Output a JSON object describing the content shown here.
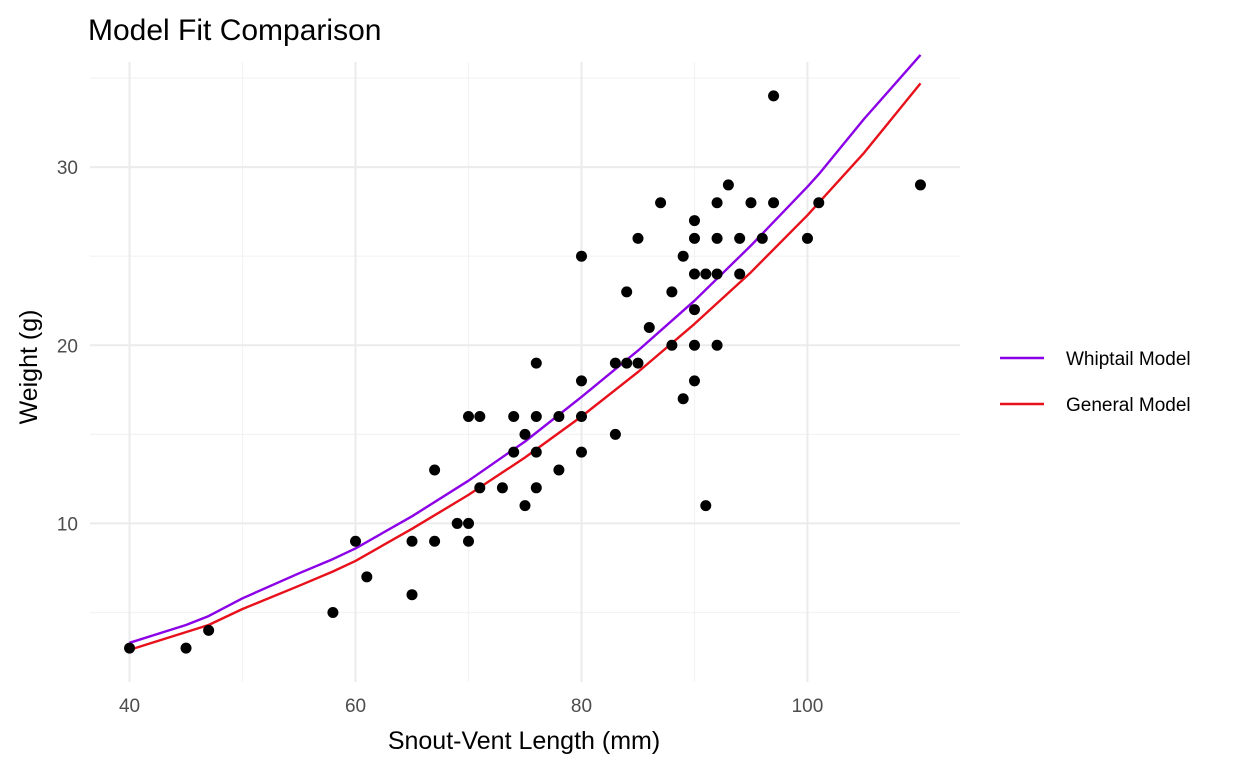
{
  "chart_data": {
    "type": "scatter",
    "title": "Model Fit Comparison",
    "xlabel": "Snout-Vent Length (mm)",
    "ylabel": "Weight (g)",
    "xlim": [
      36.5,
      113.5
    ],
    "ylim": [
      1.1,
      35.9
    ],
    "x_ticks": [
      40,
      60,
      80,
      100
    ],
    "y_ticks": [
      10,
      20,
      30
    ],
    "x_minor_ticks": [
      50,
      70,
      90
    ],
    "y_minor_ticks": [
      5,
      15,
      25,
      35
    ],
    "grid": true,
    "legend_position": "right",
    "points": {
      "color": "#000000",
      "x": [
        40,
        45,
        47,
        58,
        60,
        61,
        65,
        65,
        67,
        67,
        69,
        70,
        70,
        70,
        71,
        71,
        73,
        74,
        74,
        75,
        75,
        76,
        76,
        76,
        76,
        78,
        78,
        80,
        80,
        80,
        80,
        83,
        83,
        84,
        84,
        85,
        85,
        86,
        87,
        88,
        88,
        89,
        89,
        90,
        90,
        90,
        90,
        90,
        90,
        91,
        91,
        92,
        92,
        92,
        92,
        93,
        94,
        94,
        95,
        96,
        97,
        97,
        100,
        101,
        110
      ],
      "y": [
        3,
        3,
        4,
        5,
        9,
        7,
        9,
        6,
        13,
        9,
        10,
        16,
        10,
        9,
        16,
        12,
        12,
        16,
        14,
        15,
        11,
        19,
        16,
        14,
        12,
        16,
        13,
        25,
        18,
        16,
        14,
        19,
        15,
        23,
        19,
        26,
        19,
        21,
        28,
        23,
        20,
        25,
        17,
        27,
        26,
        24,
        22,
        20,
        18,
        24,
        11,
        28,
        26,
        24,
        20,
        29,
        26,
        24,
        28,
        26,
        34,
        28,
        26,
        28,
        29
      ]
    },
    "series": [
      {
        "name": "Whiptail Model",
        "color": "#8b00e6",
        "x": [
          40,
          45,
          47,
          50,
          55,
          58,
          60,
          65,
          70,
          75,
          80,
          85,
          90,
          95,
          100,
          101,
          105,
          110
        ],
        "y": [
          3.3,
          4.3,
          4.8,
          5.8,
          7.2,
          8.0,
          8.6,
          10.4,
          12.4,
          14.6,
          17.1,
          19.7,
          22.5,
          25.6,
          28.9,
          29.6,
          32.7,
          36.3
        ]
      },
      {
        "name": "General Model",
        "color": "#e8101a",
        "x": [
          40,
          45,
          47,
          50,
          55,
          58,
          60,
          65,
          70,
          75,
          80,
          85,
          90,
          95,
          100,
          101,
          105,
          110
        ],
        "y": [
          2.9,
          3.9,
          4.3,
          5.2,
          6.5,
          7.3,
          7.9,
          9.7,
          11.6,
          13.7,
          16.0,
          18.5,
          21.2,
          24.1,
          27.3,
          28.0,
          30.8,
          34.7
        ]
      }
    ]
  }
}
